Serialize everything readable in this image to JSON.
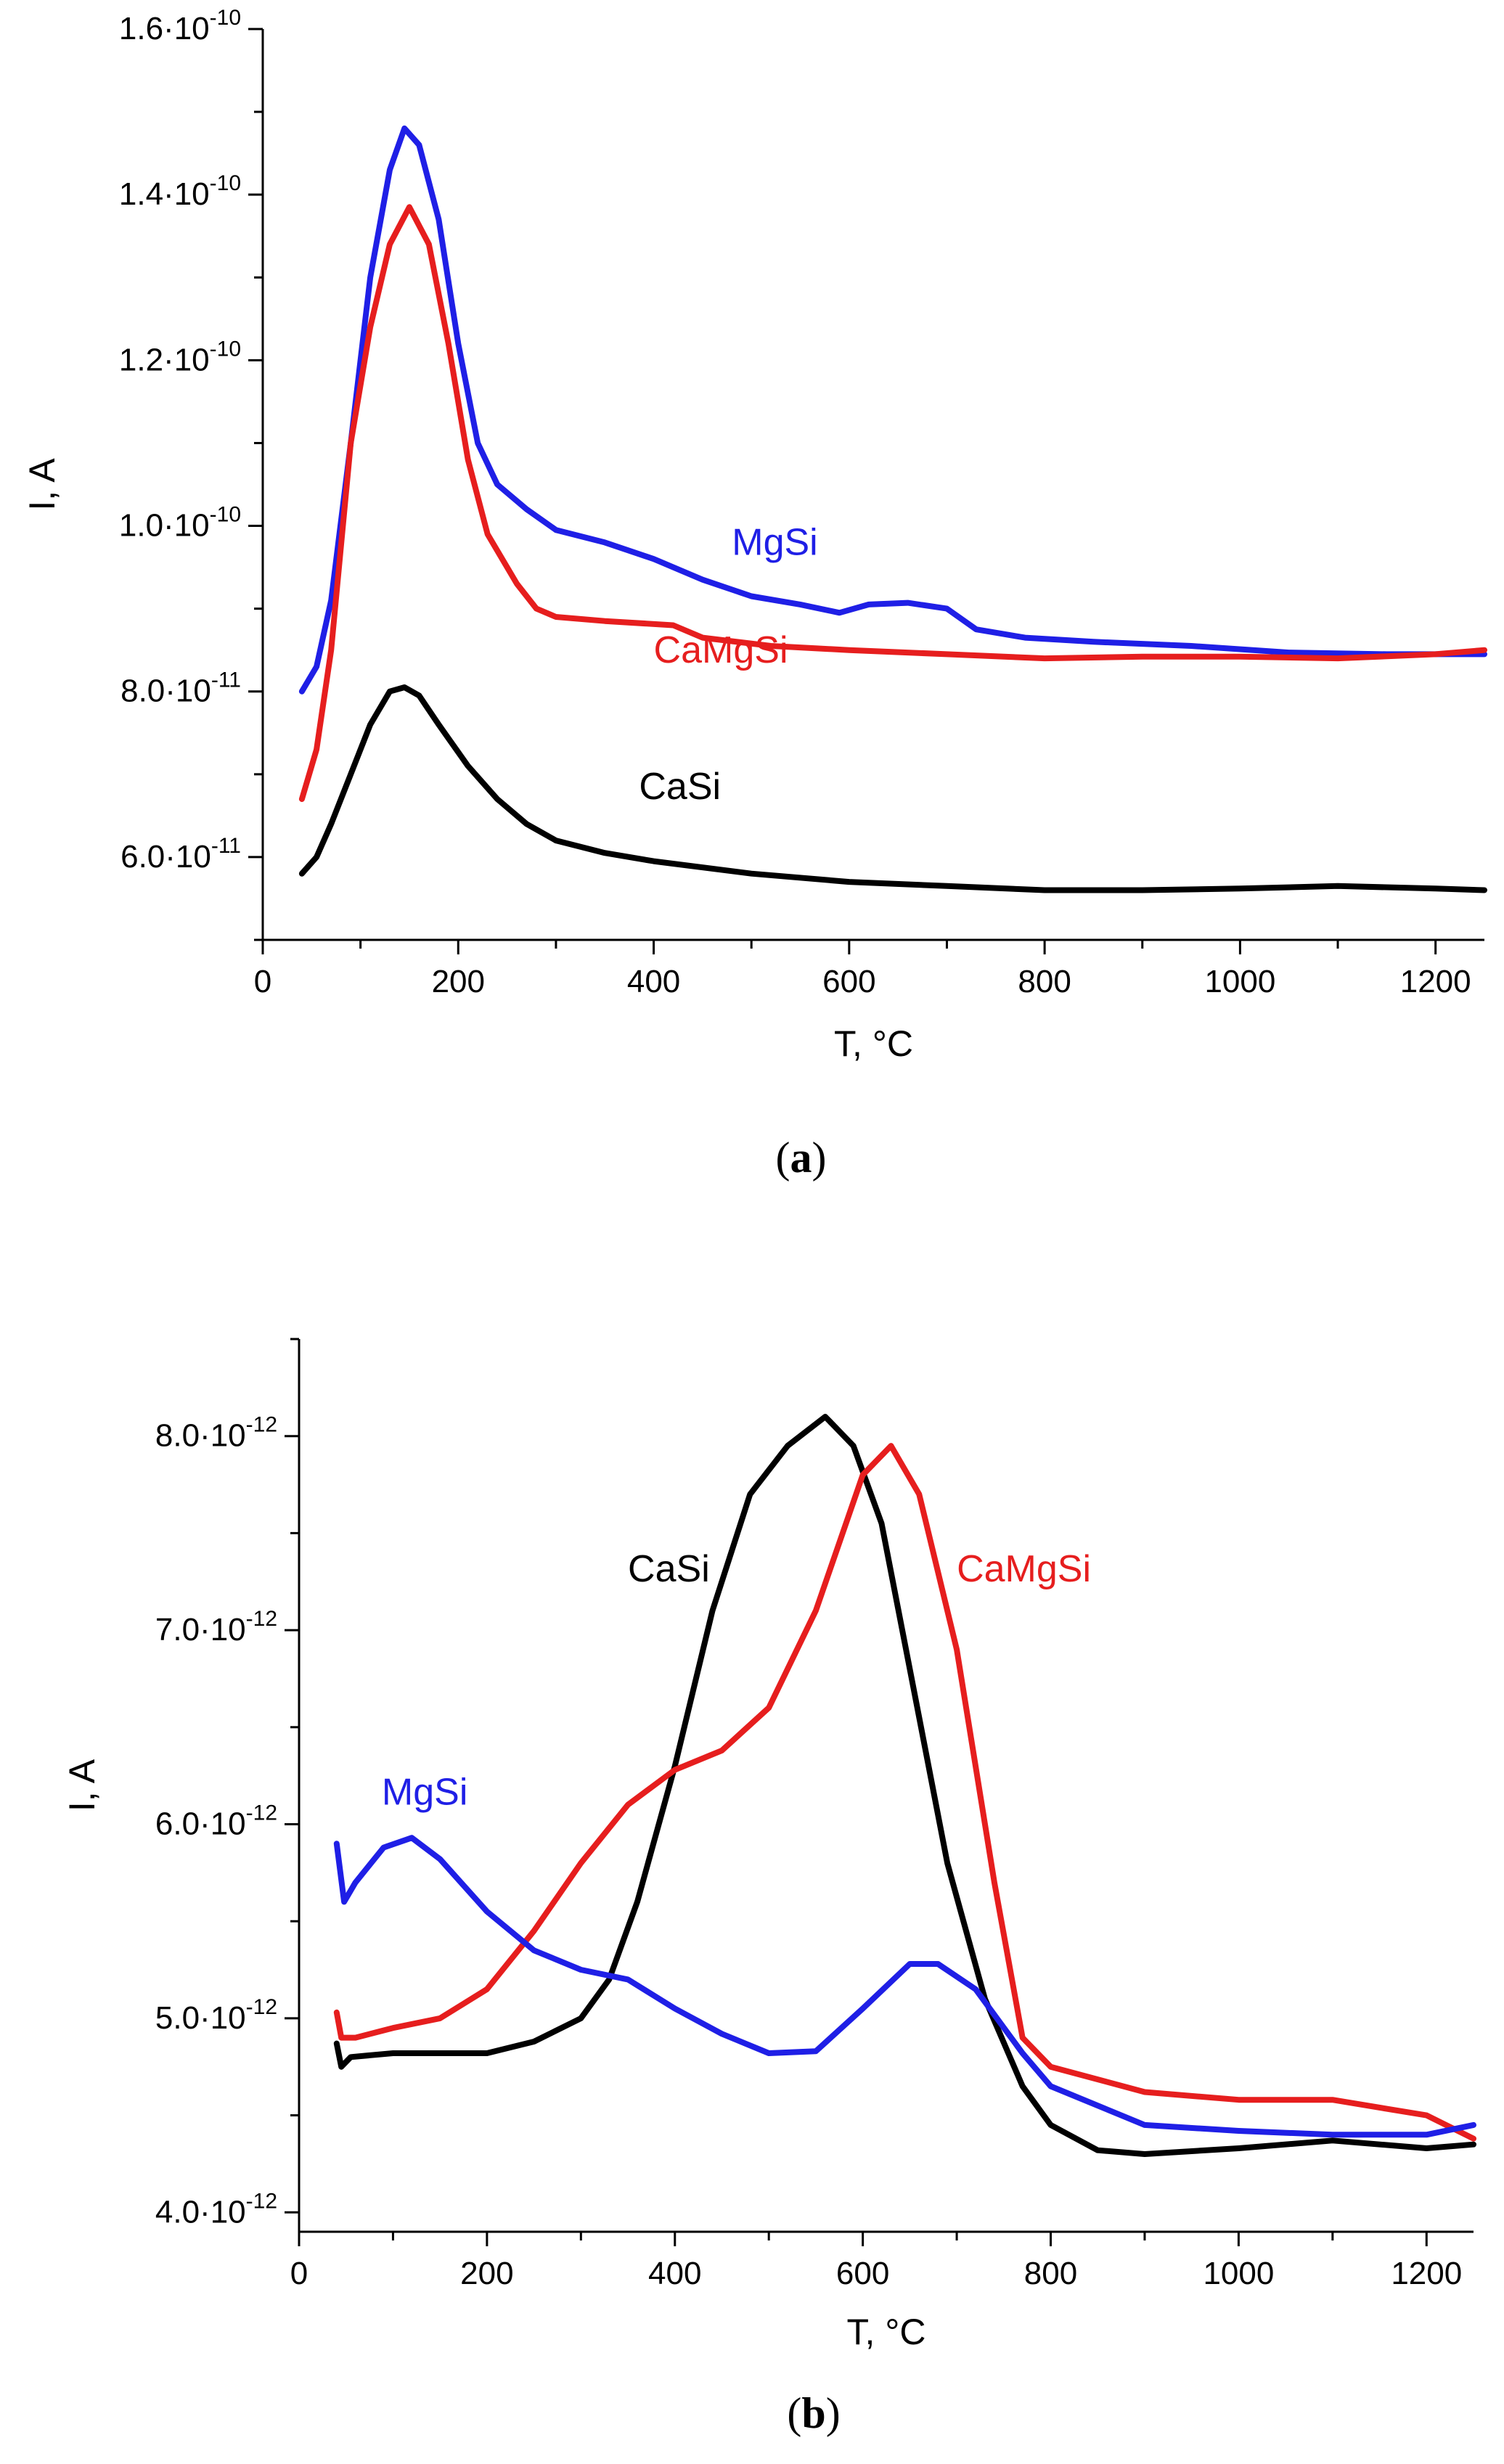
{
  "chart_data": [
    {
      "type": "line",
      "panel_label": "a",
      "xlabel": "T, °C",
      "ylabel": "I, A",
      "xlim": [
        0,
        1250
      ],
      "ylim": [
        5e-11,
        1.6e-10
      ],
      "x_ticks": [
        0,
        200,
        400,
        600,
        800,
        1000,
        1200
      ],
      "x_tick_labels": [
        "0",
        "200",
        "400",
        "600",
        "800",
        "1000",
        "1200"
      ],
      "y_ticks": [
        6e-11,
        8e-11,
        1e-10,
        1.2e-10,
        1.4e-10,
        1.6e-10
      ],
      "y_tick_mantissas": [
        "6.0·10",
        "8.0·10",
        "1.0·10",
        "1.2·10",
        "1.4·10",
        "1.6·10"
      ],
      "y_tick_exponents": [
        "-11",
        "-11",
        "-10",
        "-10",
        "-10",
        "-10"
      ],
      "series": [
        {
          "name": "MgSi",
          "color": "#1f1fe6",
          "label_at": [
            480,
            9.65e-11
          ],
          "points": [
            [
              40,
              8e-11
            ],
            [
              55,
              8.3e-11
            ],
            [
              70,
              9.1e-11
            ],
            [
              90,
              1.1e-10
            ],
            [
              110,
              1.3e-10
            ],
            [
              130,
              1.43e-10
            ],
            [
              145,
              1.48e-10
            ],
            [
              160,
              1.46e-10
            ],
            [
              180,
              1.37e-10
            ],
            [
              200,
              1.22e-10
            ],
            [
              220,
              1.1e-10
            ],
            [
              240,
              1.05e-10
            ],
            [
              270,
              1.02e-10
            ],
            [
              300,
              9.95e-11
            ],
            [
              350,
              9.8e-11
            ],
            [
              400,
              9.6e-11
            ],
            [
              450,
              9.35e-11
            ],
            [
              500,
              9.15e-11
            ],
            [
              550,
              9.05e-11
            ],
            [
              590,
              8.95e-11
            ],
            [
              620,
              9.05e-11
            ],
            [
              660,
              9.07e-11
            ],
            [
              700,
              9e-11
            ],
            [
              730,
              8.75e-11
            ],
            [
              780,
              8.65e-11
            ],
            [
              850,
              8.6e-11
            ],
            [
              950,
              8.55e-11
            ],
            [
              1050,
              8.47e-11
            ],
            [
              1150,
              8.45e-11
            ],
            [
              1250,
              8.45e-11
            ]
          ]
        },
        {
          "name": "CaMgSi",
          "color": "#e61e1e",
          "label_at": [
            400,
            8.35e-11
          ],
          "points": [
            [
              40,
              6.7e-11
            ],
            [
              55,
              7.3e-11
            ],
            [
              70,
              8.5e-11
            ],
            [
              90,
              1.1e-10
            ],
            [
              110,
              1.24e-10
            ],
            [
              130,
              1.34e-10
            ],
            [
              150,
              1.385e-10
            ],
            [
              170,
              1.34e-10
            ],
            [
              190,
              1.22e-10
            ],
            [
              210,
              1.08e-10
            ],
            [
              230,
              9.9e-11
            ],
            [
              260,
              9.3e-11
            ],
            [
              280,
              9e-11
            ],
            [
              300,
              8.9e-11
            ],
            [
              350,
              8.85e-11
            ],
            [
              420,
              8.8e-11
            ],
            [
              450,
              8.65e-11
            ],
            [
              520,
              8.55e-11
            ],
            [
              600,
              8.5e-11
            ],
            [
              700,
              8.45e-11
            ],
            [
              800,
              8.4e-11
            ],
            [
              900,
              8.42e-11
            ],
            [
              1000,
              8.42e-11
            ],
            [
              1100,
              8.4e-11
            ],
            [
              1200,
              8.45e-11
            ],
            [
              1250,
              8.5e-11
            ]
          ]
        },
        {
          "name": "CaSi",
          "color": "#000000",
          "label_at": [
            385,
            6.7e-11
          ],
          "points": [
            [
              40,
              5.8e-11
            ],
            [
              55,
              6e-11
            ],
            [
              70,
              6.4e-11
            ],
            [
              90,
              7e-11
            ],
            [
              110,
              7.6e-11
            ],
            [
              130,
              8e-11
            ],
            [
              145,
              8.05e-11
            ],
            [
              160,
              7.95e-11
            ],
            [
              180,
              7.6e-11
            ],
            [
              210,
              7.1e-11
            ],
            [
              240,
              6.7e-11
            ],
            [
              270,
              6.4e-11
            ],
            [
              300,
              6.2e-11
            ],
            [
              350,
              6.05e-11
            ],
            [
              400,
              5.95e-11
            ],
            [
              500,
              5.8e-11
            ],
            [
              600,
              5.7e-11
            ],
            [
              700,
              5.65e-11
            ],
            [
              800,
              5.6e-11
            ],
            [
              900,
              5.6e-11
            ],
            [
              1000,
              5.62e-11
            ],
            [
              1100,
              5.65e-11
            ],
            [
              1200,
              5.62e-11
            ],
            [
              1250,
              5.6e-11
            ]
          ]
        }
      ]
    },
    {
      "type": "line",
      "panel_label": "b",
      "xlabel": "T, °C",
      "ylabel": "I, A",
      "xlim": [
        0,
        1250
      ],
      "ylim": [
        3.9e-12,
        8.5e-12
      ],
      "x_ticks": [
        0,
        200,
        400,
        600,
        800,
        1000,
        1200
      ],
      "x_tick_labels": [
        "0",
        "200",
        "400",
        "600",
        "800",
        "1000",
        "1200"
      ],
      "y_ticks": [
        4e-12,
        5e-12,
        6e-12,
        7e-12,
        8e-12
      ],
      "y_tick_mantissas": [
        "4.0·10",
        "5.0·10",
        "6.0·10",
        "7.0·10",
        "8.0·10"
      ],
      "y_tick_exponents": [
        "-12",
        "-12",
        "-12",
        "-12",
        "-12"
      ],
      "series": [
        {
          "name": "CaSi",
          "color": "#000000",
          "label_at": [
            350,
            7.25e-12
          ],
          "points": [
            [
              40,
              4.87e-12
            ],
            [
              45,
              4.75e-12
            ],
            [
              55,
              4.8e-12
            ],
            [
              100,
              4.82e-12
            ],
            [
              200,
              4.82e-12
            ],
            [
              250,
              4.88e-12
            ],
            [
              300,
              5e-12
            ],
            [
              330,
              5.2e-12
            ],
            [
              360,
              5.6e-12
            ],
            [
              400,
              6.3e-12
            ],
            [
              440,
              7.1e-12
            ],
            [
              480,
              7.7e-12
            ],
            [
              520,
              7.95e-12
            ],
            [
              560,
              8.1e-12
            ],
            [
              590,
              7.95e-12
            ],
            [
              620,
              7.55e-12
            ],
            [
              650,
              6.8e-12
            ],
            [
              690,
              5.8e-12
            ],
            [
              730,
              5.1e-12
            ],
            [
              770,
              4.65e-12
            ],
            [
              800,
              4.45e-12
            ],
            [
              850,
              4.32e-12
            ],
            [
              900,
              4.3e-12
            ],
            [
              1000,
              4.33e-12
            ],
            [
              1100,
              4.37e-12
            ],
            [
              1200,
              4.33e-12
            ],
            [
              1250,
              4.35e-12
            ]
          ]
        },
        {
          "name": "CaMgSi",
          "color": "#e61e1e",
          "label_at": [
            700,
            7.25e-12
          ],
          "points": [
            [
              40,
              5.03e-12
            ],
            [
              45,
              4.9e-12
            ],
            [
              60,
              4.9e-12
            ],
            [
              100,
              4.95e-12
            ],
            [
              150,
              5e-12
            ],
            [
              200,
              5.15e-12
            ],
            [
              250,
              5.45e-12
            ],
            [
              300,
              5.8e-12
            ],
            [
              350,
              6.1e-12
            ],
            [
              400,
              6.28e-12
            ],
            [
              450,
              6.38e-12
            ],
            [
              500,
              6.6e-12
            ],
            [
              550,
              7.1e-12
            ],
            [
              600,
              7.8e-12
            ],
            [
              630,
              7.95e-12
            ],
            [
              660,
              7.7e-12
            ],
            [
              700,
              6.9e-12
            ],
            [
              740,
              5.7e-12
            ],
            [
              770,
              4.9e-12
            ],
            [
              800,
              4.75e-12
            ],
            [
              900,
              4.62e-12
            ],
            [
              1000,
              4.58e-12
            ],
            [
              1100,
              4.58e-12
            ],
            [
              1200,
              4.5e-12
            ],
            [
              1250,
              4.38e-12
            ]
          ]
        },
        {
          "name": "MgSi",
          "color": "#1f1fe6",
          "label_at": [
            88,
            6.1e-12
          ],
          "points": [
            [
              40,
              5.9e-12
            ],
            [
              48,
              5.6e-12
            ],
            [
              60,
              5.7e-12
            ],
            [
              90,
              5.88e-12
            ],
            [
              120,
              5.93e-12
            ],
            [
              150,
              5.82e-12
            ],
            [
              200,
              5.55e-12
            ],
            [
              250,
              5.35e-12
            ],
            [
              300,
              5.25e-12
            ],
            [
              350,
              5.2e-12
            ],
            [
              400,
              5.05e-12
            ],
            [
              450,
              4.92e-12
            ],
            [
              500,
              4.82e-12
            ],
            [
              550,
              4.83e-12
            ],
            [
              600,
              5.05e-12
            ],
            [
              650,
              5.28e-12
            ],
            [
              680,
              5.28e-12
            ],
            [
              720,
              5.15e-12
            ],
            [
              770,
              4.82e-12
            ],
            [
              800,
              4.65e-12
            ],
            [
              900,
              4.45e-12
            ],
            [
              1000,
              4.42e-12
            ],
            [
              1100,
              4.4e-12
            ],
            [
              1200,
              4.4e-12
            ],
            [
              1250,
              4.45e-12
            ]
          ]
        }
      ]
    }
  ]
}
